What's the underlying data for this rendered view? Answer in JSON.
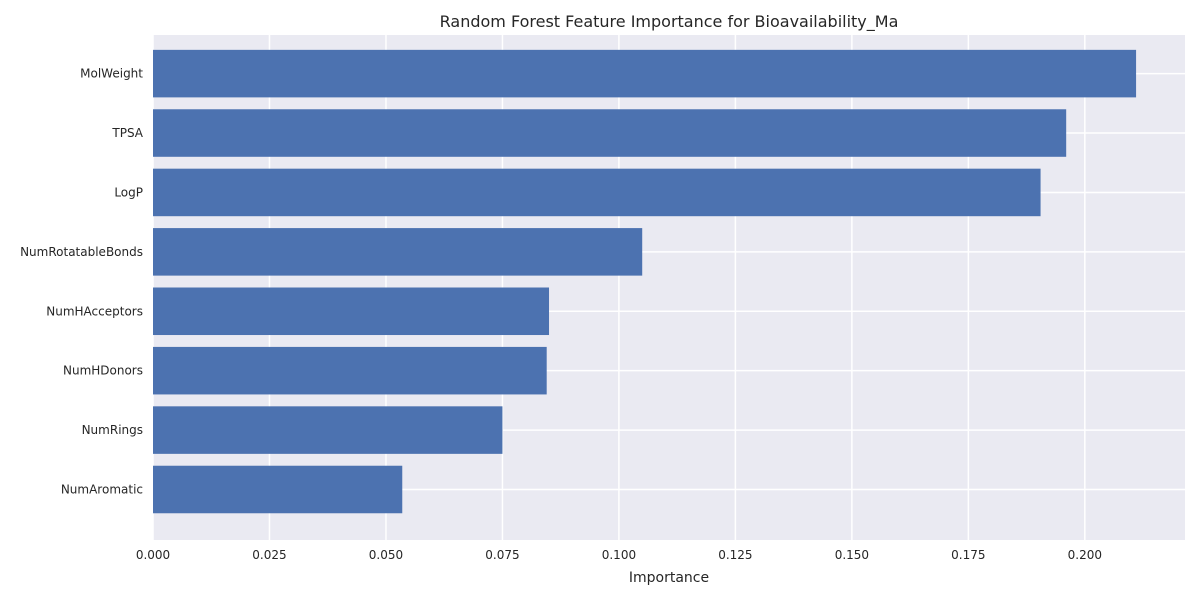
{
  "chart_data": {
    "type": "bar",
    "orientation": "horizontal",
    "title": "Random Forest Feature Importance for Bioavailability_Ma",
    "xlabel": "Importance",
    "ylabel": "",
    "categories": [
      "MolWeight",
      "TPSA",
      "LogP",
      "NumRotatableBonds",
      "NumHAcceptors",
      "NumHDonors",
      "NumRings",
      "NumAromatic"
    ],
    "values": [
      0.211,
      0.196,
      0.1905,
      0.105,
      0.085,
      0.0845,
      0.075,
      0.0535
    ],
    "xlim": [
      0.0,
      0.2215
    ],
    "xticks": [
      "0.000",
      "0.025",
      "0.050",
      "0.075",
      "0.100",
      "0.125",
      "0.150",
      "0.175",
      "0.200"
    ],
    "grid": true,
    "colors": {
      "bar": "#4c72b0",
      "background": "#eaeaf2",
      "grid": "#ffffff"
    }
  }
}
